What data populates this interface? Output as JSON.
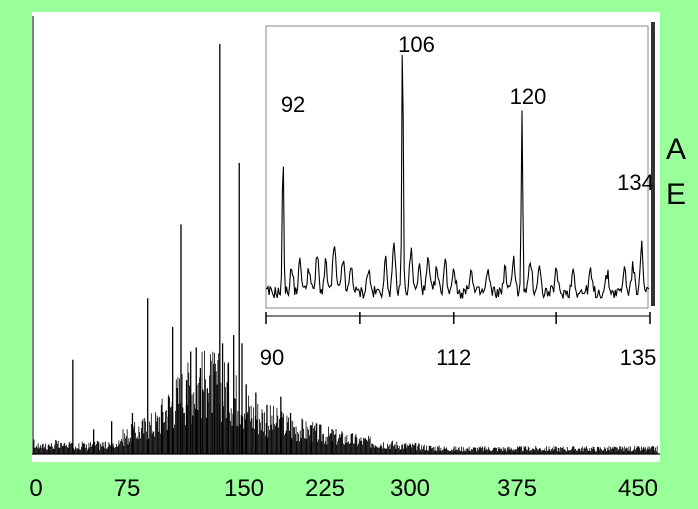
{
  "chart_data": [
    {
      "type": "line",
      "title": "",
      "xlabel": "",
      "ylabel": "",
      "xlim": [
        0,
        450
      ],
      "x_ticks": [
        "0",
        "75",
        "150",
        "225",
        "300",
        "375",
        "450"
      ],
      "peaks": [
        {
          "x": 28,
          "y": 0.23
        },
        {
          "x": 43,
          "y": 0.06
        },
        {
          "x": 56,
          "y": 0.08
        },
        {
          "x": 71,
          "y": 0.1
        },
        {
          "x": 82,
          "y": 0.38
        },
        {
          "x": 92,
          "y": 0.12
        },
        {
          "x": 97,
          "y": 0.14
        },
        {
          "x": 100,
          "y": 0.31
        },
        {
          "x": 106,
          "y": 0.56
        },
        {
          "x": 110,
          "y": 0.18
        },
        {
          "x": 113,
          "y": 0.25
        },
        {
          "x": 117,
          "y": 0.26
        },
        {
          "x": 120,
          "y": 0.21
        },
        {
          "x": 125,
          "y": 0.16
        },
        {
          "x": 130,
          "y": 0.2
        },
        {
          "x": 134,
          "y": 1.0
        },
        {
          "x": 136,
          "y": 0.27
        },
        {
          "x": 140,
          "y": 0.22
        },
        {
          "x": 144,
          "y": 0.29
        },
        {
          "x": 148,
          "y": 0.71
        },
        {
          "x": 150,
          "y": 0.27
        },
        {
          "x": 153,
          "y": 0.17
        },
        {
          "x": 160,
          "y": 0.15
        },
        {
          "x": 168,
          "y": 0.12
        },
        {
          "x": 178,
          "y": 0.14
        },
        {
          "x": 185,
          "y": 0.1
        },
        {
          "x": 200,
          "y": 0.07
        },
        {
          "x": 215,
          "y": 0.06
        }
      ]
    },
    {
      "type": "line",
      "title": "",
      "xlabel": "",
      "ylabel": "",
      "xlim": [
        90,
        135
      ],
      "x_ticks": [
        "90",
        "112",
        "135"
      ],
      "peak_labels": [
        "92",
        "106",
        "120",
        "134"
      ],
      "peaks": [
        {
          "x": 92,
          "y": 0.56
        },
        {
          "x": 93,
          "y": 0.09
        },
        {
          "x": 94,
          "y": 0.12
        },
        {
          "x": 95,
          "y": 0.1
        },
        {
          "x": 96,
          "y": 0.14
        },
        {
          "x": 97,
          "y": 0.11
        },
        {
          "x": 98,
          "y": 0.18
        },
        {
          "x": 99,
          "y": 0.13
        },
        {
          "x": 100,
          "y": 0.1
        },
        {
          "x": 102,
          "y": 0.09
        },
        {
          "x": 104,
          "y": 0.12
        },
        {
          "x": 105,
          "y": 0.17
        },
        {
          "x": 106,
          "y": 1.0
        },
        {
          "x": 107,
          "y": 0.16
        },
        {
          "x": 108,
          "y": 0.1
        },
        {
          "x": 109,
          "y": 0.12
        },
        {
          "x": 110,
          "y": 0.09
        },
        {
          "x": 111,
          "y": 0.12
        },
        {
          "x": 112,
          "y": 0.1
        },
        {
          "x": 114,
          "y": 0.09
        },
        {
          "x": 116,
          "y": 0.08
        },
        {
          "x": 118,
          "y": 0.09
        },
        {
          "x": 119,
          "y": 0.14
        },
        {
          "x": 120,
          "y": 0.71
        },
        {
          "x": 121,
          "y": 0.12
        },
        {
          "x": 122,
          "y": 0.1
        },
        {
          "x": 124,
          "y": 0.08
        },
        {
          "x": 126,
          "y": 0.09
        },
        {
          "x": 128,
          "y": 0.08
        },
        {
          "x": 130,
          "y": 0.07
        },
        {
          "x": 132,
          "y": 0.09
        },
        {
          "x": 133,
          "y": 0.1
        },
        {
          "x": 134,
          "y": 0.18
        }
      ]
    }
  ],
  "side_text": [
    "A",
    "E"
  ]
}
